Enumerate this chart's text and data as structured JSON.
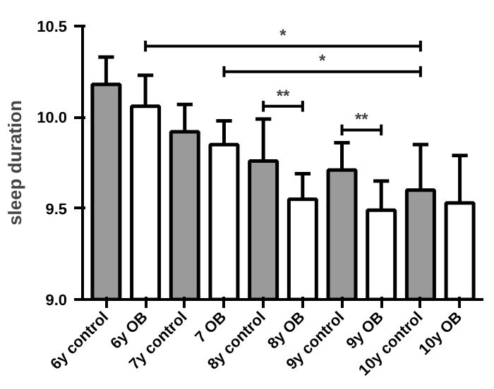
{
  "chart_data": {
    "type": "bar",
    "ylabel": "sleep duration",
    "categories": [
      "6y control",
      "6y OB",
      "7y control",
      "7 OB",
      "8y control",
      "8y OB",
      "9y control",
      "9y OB",
      "10y control",
      "10y OB"
    ],
    "values": [
      10.18,
      10.06,
      9.92,
      9.85,
      9.76,
      9.55,
      9.71,
      9.49,
      9.6,
      9.53
    ],
    "colors": [
      "#9a9a9a",
      "#ffffff",
      "#9a9a9a",
      "#ffffff",
      "#9a9a9a",
      "#ffffff",
      "#9a9a9a",
      "#ffffff",
      "#9a9a9a",
      "#ffffff"
    ],
    "errors": [
      [
        10.18,
        10.33
      ],
      [
        10.06,
        10.23
      ],
      [
        9.92,
        10.07
      ],
      [
        9.85,
        9.98
      ],
      [
        9.76,
        9.99
      ],
      [
        9.55,
        9.69
      ],
      [
        9.71,
        9.86
      ],
      [
        9.49,
        9.65
      ],
      [
        9.6,
        9.85
      ],
      [
        9.53,
        9.79
      ]
    ],
    "ylim": [
      9.0,
      10.5
    ],
    "yticks": [
      {
        "value": 9.0,
        "label": "9.0"
      },
      9.5,
      {
        "value": 10.0,
        "label": "10.0"
      },
      10.5
    ],
    "grid": false,
    "annotations": [
      "*",
      "*",
      "**",
      "**"
    ]
  }
}
